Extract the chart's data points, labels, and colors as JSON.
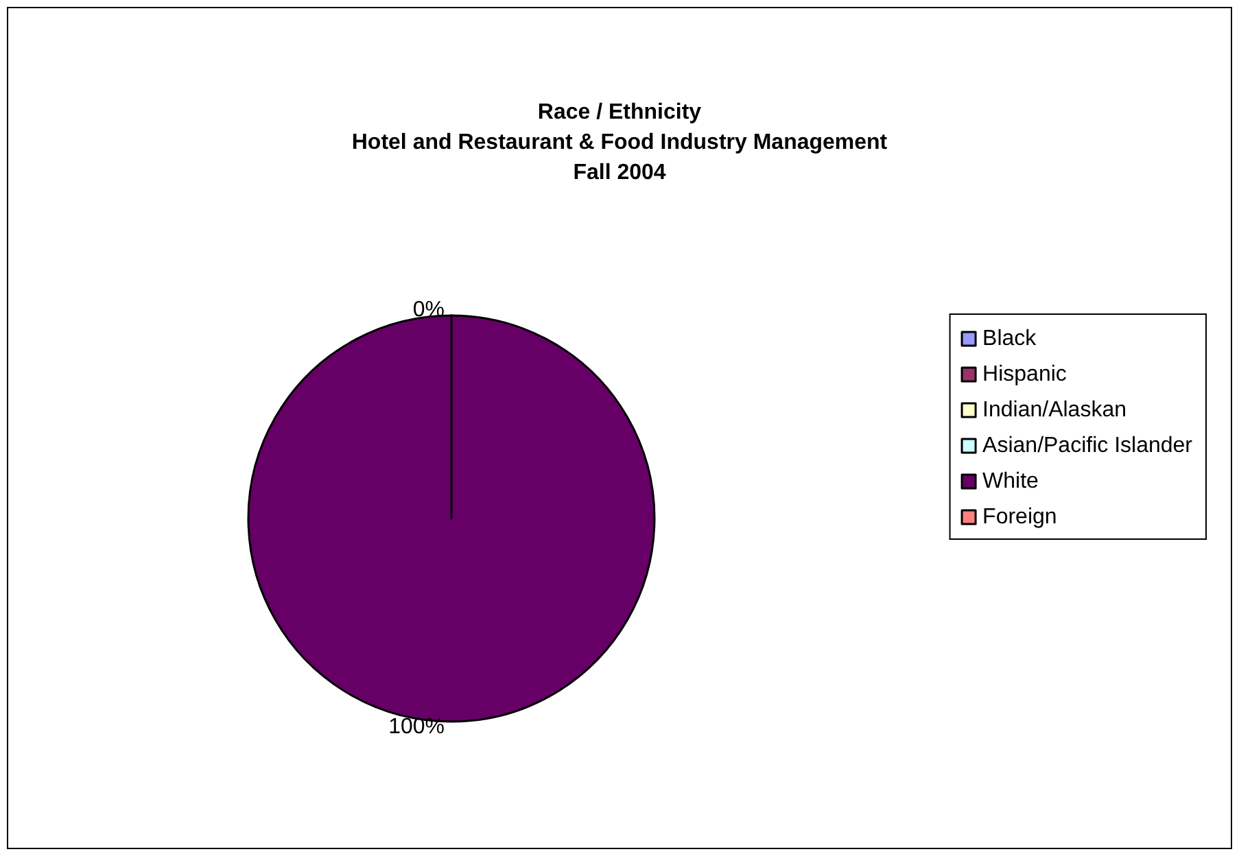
{
  "chart_data": {
    "type": "pie",
    "title": "Race / Ethnicity\nHotel and Restaurant & Food Industry Management\nFall 2004",
    "categories": [
      "Black",
      "Hispanic",
      "Indian/Alaskan",
      "Asian/Pacific Islander",
      "White",
      "Foreign"
    ],
    "values": [
      0,
      0,
      0,
      0,
      100,
      0
    ],
    "value_labels": [
      "0%",
      null,
      null,
      null,
      "100%",
      null
    ],
    "colors": [
      "#9999ff",
      "#993366",
      "#ffffcc",
      "#ccffff",
      "#660066",
      "#ff8080"
    ],
    "legend": "right"
  }
}
